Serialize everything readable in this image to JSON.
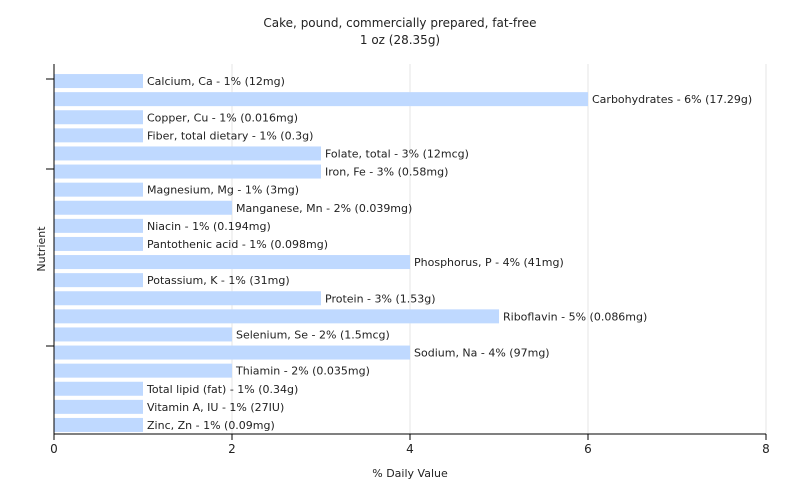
{
  "chart_data": {
    "type": "bar",
    "orientation": "horizontal",
    "title": "Cake, pound, commercially prepared, fat-free",
    "subtitle": "1 oz (28.35g)",
    "xlabel": "% Daily Value",
    "ylabel": "Nutrient",
    "xlim": [
      0,
      8
    ],
    "xticks": [
      0,
      2,
      4,
      6,
      8
    ],
    "grid": true,
    "bar_color": "#bfd9ff",
    "categories": [
      "Calcium, Ca",
      "Carbohydrates",
      "Copper, Cu",
      "Fiber, total dietary",
      "Folate, total",
      "Iron, Fe",
      "Magnesium, Mg",
      "Manganese, Mn",
      "Niacin",
      "Pantothenic acid",
      "Phosphorus, P",
      "Potassium, K",
      "Protein",
      "Riboflavin",
      "Selenium, Se",
      "Sodium, Na",
      "Thiamin",
      "Total lipid (fat)",
      "Vitamin A, IU",
      "Zinc, Zn"
    ],
    "values": [
      1,
      6,
      1,
      1,
      3,
      3,
      1,
      2,
      1,
      1,
      4,
      1,
      3,
      5,
      2,
      4,
      2,
      1,
      1,
      1
    ],
    "labels": [
      "Calcium, Ca - 1% (12mg)",
      "Carbohydrates - 6% (17.29g)",
      "Copper, Cu - 1% (0.016mg)",
      "Fiber, total dietary - 1% (0.3g)",
      "Folate, total - 3% (12mcg)",
      "Iron, Fe - 3% (0.58mg)",
      "Magnesium, Mg - 1% (3mg)",
      "Manganese, Mn - 2% (0.039mg)",
      "Niacin - 1% (0.194mg)",
      "Pantothenic acid - 1% (0.098mg)",
      "Phosphorus, P - 4% (41mg)",
      "Potassium, K - 1% (31mg)",
      "Protein - 3% (1.53g)",
      "Riboflavin - 5% (0.086mg)",
      "Selenium, Se - 2% (1.5mcg)",
      "Sodium, Na - 4% (97mg)",
      "Thiamin - 2% (0.035mg)",
      "Total lipid (fat) - 1% (0.34g)",
      "Vitamin A, IU - 1% (27IU)",
      "Zinc, Zn - 1% (0.09mg)"
    ]
  }
}
